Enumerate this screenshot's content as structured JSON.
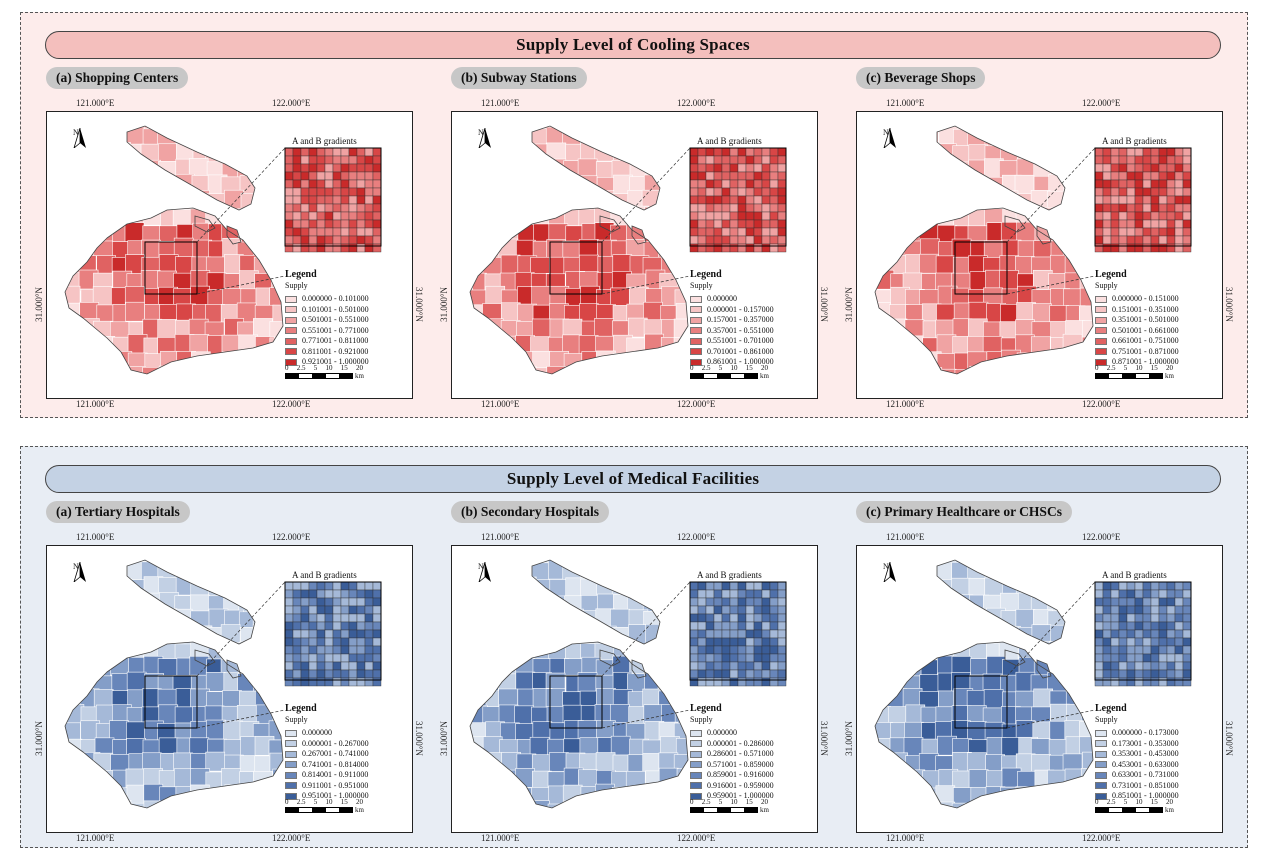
{
  "sections": [
    {
      "title": "Supply Level of Cooling Spaces",
      "theme": "red",
      "panels": [
        {
          "label": "(a) Shopping Centers",
          "inset_title": "A and B gradients",
          "lon_left": "121.000°E",
          "lon_right": "122.000°E",
          "lat": "31.000°N",
          "legend_title": "Legend",
          "legend_sub": "Supply",
          "classes": [
            "0.000000 - 0.101000",
            "0.101001 - 0.501000",
            "0.501001 - 0.551000",
            "0.551001 - 0.771000",
            "0.771001 - 0.811000",
            "0.811001 - 0.921000",
            "0.921001 - 1.000000"
          ],
          "scale_nums": [
            "0",
            "2.5",
            "5",
            "10",
            "15",
            "20"
          ],
          "scale_unit": "km"
        },
        {
          "label": "(b) Subway Stations",
          "inset_title": "A and B gradients",
          "lon_left": "121.000°E",
          "lon_right": "122.000°E",
          "lat": "31.000°N",
          "legend_title": "Legend",
          "legend_sub": "Supply",
          "classes": [
            "0.000000",
            "0.000001 - 0.157000",
            "0.157001 - 0.357000",
            "0.357001 - 0.551000",
            "0.551001 - 0.701000",
            "0.701001 - 0.861000",
            "0.861001 - 1.000000"
          ],
          "scale_nums": [
            "0",
            "2.5",
            "5",
            "10",
            "15",
            "20"
          ],
          "scale_unit": "km"
        },
        {
          "label": "(c) Beverage Shops",
          "inset_title": "A and B gradients",
          "lon_left": "121.000°E",
          "lon_right": "122.000°E",
          "lat": "31.000°N",
          "legend_title": "Legend",
          "legend_sub": "Supply",
          "classes": [
            "0.000000 - 0.151000",
            "0.151001 - 0.351000",
            "0.351001 - 0.501000",
            "0.501001 - 0.661000",
            "0.661001 - 0.751000",
            "0.751001 - 0.871000",
            "0.871001 - 1.000000"
          ],
          "scale_nums": [
            "0",
            "2.5",
            "5",
            "10",
            "15",
            "20"
          ],
          "scale_unit": "km"
        }
      ]
    },
    {
      "title": "Supply Level of Medical Facilities",
      "theme": "blue",
      "panels": [
        {
          "label": "(a) Tertiary Hospitals",
          "inset_title": "A and B gradients",
          "lon_left": "121.000°E",
          "lon_right": "122.000°E",
          "lat": "31.000°N",
          "legend_title": "Legend",
          "legend_sub": "Supply",
          "classes": [
            "0.000000",
            "0.000001 - 0.267000",
            "0.267001 - 0.741000",
            "0.741001 - 0.814000",
            "0.814001 - 0.911000",
            "0.911001 - 0.951000",
            "0.951001 - 1.000000"
          ],
          "scale_nums": [
            "0",
            "2.5",
            "5",
            "10",
            "15",
            "20"
          ],
          "scale_unit": "km"
        },
        {
          "label": "(b) Secondary Hospitals",
          "inset_title": "A and B gradients",
          "lon_left": "121.000°E",
          "lon_right": "122.000°E",
          "lat": "31.000°N",
          "legend_title": "Legend",
          "legend_sub": "Supply",
          "classes": [
            "0.000000",
            "0.000001 - 0.286000",
            "0.286001 - 0.571000",
            "0.571001 - 0.859000",
            "0.859001 - 0.916000",
            "0.916001 - 0.959000",
            "0.959001 - 1.000000"
          ],
          "scale_nums": [
            "0",
            "2.5",
            "5",
            "10",
            "15",
            "20"
          ],
          "scale_unit": "km"
        },
        {
          "label": "(c) Primary Healthcare or CHSCs",
          "inset_title": "A and B gradients",
          "lon_left": "121.000°E",
          "lon_right": "122.000°E",
          "lat": "31.000°N",
          "legend_title": "Legend",
          "legend_sub": "Supply",
          "classes": [
            "0.000000 - 0.173000",
            "0.173001 - 0.353000",
            "0.353001 - 0.453000",
            "0.453001 - 0.633000",
            "0.633001 - 0.731000",
            "0.731001 - 0.851000",
            "0.851001 - 1.000000"
          ],
          "scale_nums": [
            "0",
            "2.5",
            "5",
            "10",
            "15",
            "20"
          ],
          "scale_unit": "km"
        }
      ]
    }
  ],
  "palettes": {
    "red": [
      "#fbe0e0",
      "#f6c4c4",
      "#f0a3a3",
      "#e87f7f",
      "#e06262",
      "#d84646",
      "#c92a2a"
    ],
    "blue": [
      "#dde5f0",
      "#c2d0e4",
      "#a5b9d8",
      "#849ec8",
      "#6886ba",
      "#4f70aa",
      "#3a5d98"
    ]
  }
}
